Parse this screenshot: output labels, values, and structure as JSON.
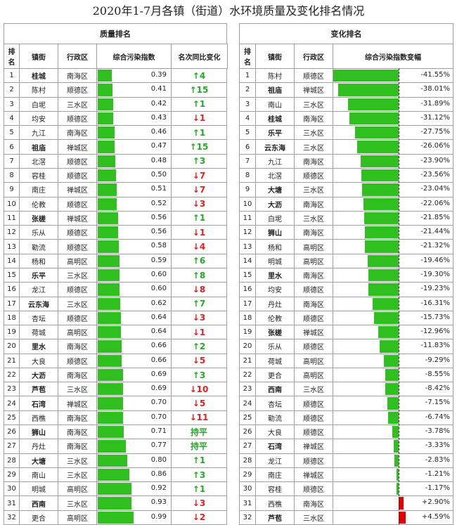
{
  "title": "2020年1-7月各镇（街道）水环境质量及变化排名情况",
  "quality": {
    "heading": "质量排名",
    "columns": [
      "排名",
      "镇街",
      "行政区",
      "综合污染指数",
      "名次同比变化"
    ],
    "rows": [
      {
        "rank": 1,
        "town": "桂城",
        "district": "南海区",
        "index": "0.39",
        "change": "↑4",
        "bold": true
      },
      {
        "rank": 2,
        "town": "陈村",
        "district": "顺德区",
        "index": "0.41",
        "change": "↑15",
        "bold": false
      },
      {
        "rank": 3,
        "town": "白坭",
        "district": "三水区",
        "index": "0.42",
        "change": "↑1",
        "bold": false
      },
      {
        "rank": 4,
        "town": "均安",
        "district": "顺德区",
        "index": "0.43",
        "change": "↓1",
        "bold": false
      },
      {
        "rank": 5,
        "town": "九江",
        "district": "南海区",
        "index": "0.46",
        "change": "↑1",
        "bold": false
      },
      {
        "rank": 6,
        "town": "祖庙",
        "district": "禅城区",
        "index": "0.47",
        "change": "↑15",
        "bold": true
      },
      {
        "rank": 7,
        "town": "北滘",
        "district": "顺德区",
        "index": "0.48",
        "change": "↑3",
        "bold": false
      },
      {
        "rank": 8,
        "town": "容桂",
        "district": "顺德区",
        "index": "0.50",
        "change": "↓7",
        "bold": false
      },
      {
        "rank": 9,
        "town": "南庄",
        "district": "禅城区",
        "index": "0.51",
        "change": "↓7",
        "bold": false
      },
      {
        "rank": 10,
        "town": "伦教",
        "district": "顺德区",
        "index": "0.52",
        "change": "↓3",
        "bold": false
      },
      {
        "rank": 11,
        "town": "张槎",
        "district": "禅城区",
        "index": "0.56",
        "change": "↑1",
        "bold": true
      },
      {
        "rank": 12,
        "town": "乐从",
        "district": "顺德区",
        "index": "0.56",
        "change": "↓1",
        "bold": false
      },
      {
        "rank": 13,
        "town": "勒流",
        "district": "顺德区",
        "index": "0.58",
        "change": "↓4",
        "bold": false
      },
      {
        "rank": 14,
        "town": "杨和",
        "district": "高明区",
        "index": "0.59",
        "change": "↑6",
        "bold": false
      },
      {
        "rank": 15,
        "town": "乐平",
        "district": "三水区",
        "index": "0.60",
        "change": "↑8",
        "bold": true
      },
      {
        "rank": 16,
        "town": "龙江",
        "district": "顺德区",
        "index": "0.60",
        "change": "↓8",
        "bold": false
      },
      {
        "rank": 17,
        "town": "云东海",
        "district": "三水区",
        "index": "0.62",
        "change": "↑7",
        "bold": true
      },
      {
        "rank": 18,
        "town": "杏坛",
        "district": "顺德区",
        "index": "0.64",
        "change": "↓3",
        "bold": false
      },
      {
        "rank": 19,
        "town": "荷城",
        "district": "高明区",
        "index": "0.64",
        "change": "↓1",
        "bold": false
      },
      {
        "rank": 20,
        "town": "里水",
        "district": "南海区",
        "index": "0.66",
        "change": "↑2",
        "bold": true
      },
      {
        "rank": 21,
        "town": "大良",
        "district": "顺德区",
        "index": "0.66",
        "change": "↓5",
        "bold": false
      },
      {
        "rank": 22,
        "town": "大沥",
        "district": "南海区",
        "index": "0.69",
        "change": "↑3",
        "bold": true
      },
      {
        "rank": 23,
        "town": "芦苞",
        "district": "三水区",
        "index": "0.69",
        "change": "↓10",
        "bold": true
      },
      {
        "rank": 24,
        "town": "石湾",
        "district": "禅城区",
        "index": "0.70",
        "change": "↓5",
        "bold": true
      },
      {
        "rank": 25,
        "town": "西樵",
        "district": "南海区",
        "index": "0.70",
        "change": "↓11",
        "bold": false
      },
      {
        "rank": 26,
        "town": "狮山",
        "district": "南海区",
        "index": "0.71",
        "change": "持平",
        "bold": true
      },
      {
        "rank": 27,
        "town": "丹灶",
        "district": "南海区",
        "index": "0.77",
        "change": "持平",
        "bold": false
      },
      {
        "rank": 28,
        "town": "大塘",
        "district": "三水区",
        "index": "0.80",
        "change": "↑1",
        "bold": true
      },
      {
        "rank": 29,
        "town": "南山",
        "district": "三水区",
        "index": "0.86",
        "change": "↑3",
        "bold": false
      },
      {
        "rank": 30,
        "town": "明城",
        "district": "高明区",
        "index": "0.92",
        "change": "↑1",
        "bold": false
      },
      {
        "rank": 31,
        "town": "西南",
        "district": "三水区",
        "index": "0.93",
        "change": "↓3",
        "bold": true
      },
      {
        "rank": 32,
        "town": "更合",
        "district": "高明区",
        "index": "0.99",
        "change": "↓2",
        "bold": false
      }
    ]
  },
  "change": {
    "heading": "变化排名",
    "columns": [
      "排名",
      "镇街",
      "行政区",
      "综合污染指数变幅"
    ],
    "rows": [
      {
        "rank": 1,
        "town": "陈村",
        "district": "顺德区",
        "delta": "-41.55%",
        "bold": false
      },
      {
        "rank": 2,
        "town": "祖庙",
        "district": "禅城区",
        "delta": "-38.01%",
        "bold": true
      },
      {
        "rank": 3,
        "town": "南山",
        "district": "三水区",
        "delta": "-31.89%",
        "bold": false
      },
      {
        "rank": 4,
        "town": "桂城",
        "district": "南海区",
        "delta": "-31.12%",
        "bold": true
      },
      {
        "rank": 5,
        "town": "乐平",
        "district": "三水区",
        "delta": "-27.75%",
        "bold": true
      },
      {
        "rank": 6,
        "town": "云东海",
        "district": "三水区",
        "delta": "-26.06%",
        "bold": true
      },
      {
        "rank": 7,
        "town": "九江",
        "district": "南海区",
        "delta": "-23.90%",
        "bold": false
      },
      {
        "rank": 8,
        "town": "北滘",
        "district": "顺德区",
        "delta": "-23.56%",
        "bold": false
      },
      {
        "rank": 9,
        "town": "大塘",
        "district": "三水区",
        "delta": "-23.04%",
        "bold": true
      },
      {
        "rank": 10,
        "town": "大沥",
        "district": "南海区",
        "delta": "-22.06%",
        "bold": true
      },
      {
        "rank": 11,
        "town": "白坭",
        "district": "三水区",
        "delta": "-21.85%",
        "bold": false
      },
      {
        "rank": 12,
        "town": "狮山",
        "district": "南海区",
        "delta": "-21.44%",
        "bold": true
      },
      {
        "rank": 13,
        "town": "杨和",
        "district": "高明区",
        "delta": "-21.32%",
        "bold": false
      },
      {
        "rank": 14,
        "town": "明城",
        "district": "高明区",
        "delta": "-19.46%",
        "bold": false
      },
      {
        "rank": 15,
        "town": "里水",
        "district": "南海区",
        "delta": "-19.30%",
        "bold": true
      },
      {
        "rank": 16,
        "town": "均安",
        "district": "顺德区",
        "delta": "-19.23%",
        "bold": false
      },
      {
        "rank": 17,
        "town": "丹灶",
        "district": "南海区",
        "delta": "-16.31%",
        "bold": false
      },
      {
        "rank": 18,
        "town": "伦教",
        "district": "顺德区",
        "delta": "-15.73%",
        "bold": false
      },
      {
        "rank": 19,
        "town": "张槎",
        "district": "禅城区",
        "delta": "-12.96%",
        "bold": true
      },
      {
        "rank": 20,
        "town": "乐从",
        "district": "顺德区",
        "delta": "-11.83%",
        "bold": false
      },
      {
        "rank": 21,
        "town": "荷城",
        "district": "高明区",
        "delta": "-9.29%",
        "bold": false
      },
      {
        "rank": 22,
        "town": "更合",
        "district": "高明区",
        "delta": "-8.55%",
        "bold": false
      },
      {
        "rank": 23,
        "town": "西南",
        "district": "三水区",
        "delta": "-8.42%",
        "bold": true
      },
      {
        "rank": 24,
        "town": "杏坛",
        "district": "顺德区",
        "delta": "-7.15%",
        "bold": false
      },
      {
        "rank": 25,
        "town": "勒流",
        "district": "顺德区",
        "delta": "-6.74%",
        "bold": false
      },
      {
        "rank": 26,
        "town": "大良",
        "district": "顺德区",
        "delta": "-3.78%",
        "bold": false
      },
      {
        "rank": 27,
        "town": "石湾",
        "district": "禅城区",
        "delta": "-3.33%",
        "bold": true
      },
      {
        "rank": 28,
        "town": "龙江",
        "district": "顺德区",
        "delta": "-2.83%",
        "bold": false
      },
      {
        "rank": 29,
        "town": "南庄",
        "district": "禅城区",
        "delta": "-1.21%",
        "bold": false
      },
      {
        "rank": 30,
        "town": "容桂",
        "district": "顺德区",
        "delta": "-1.17%",
        "bold": false
      },
      {
        "rank": 31,
        "town": "西樵",
        "district": "南海区",
        "delta": "+2.90%",
        "bold": false
      },
      {
        "rank": 32,
        "town": "芦苞",
        "district": "三水区",
        "delta": "+4.59%",
        "bold": true
      }
    ]
  }
}
